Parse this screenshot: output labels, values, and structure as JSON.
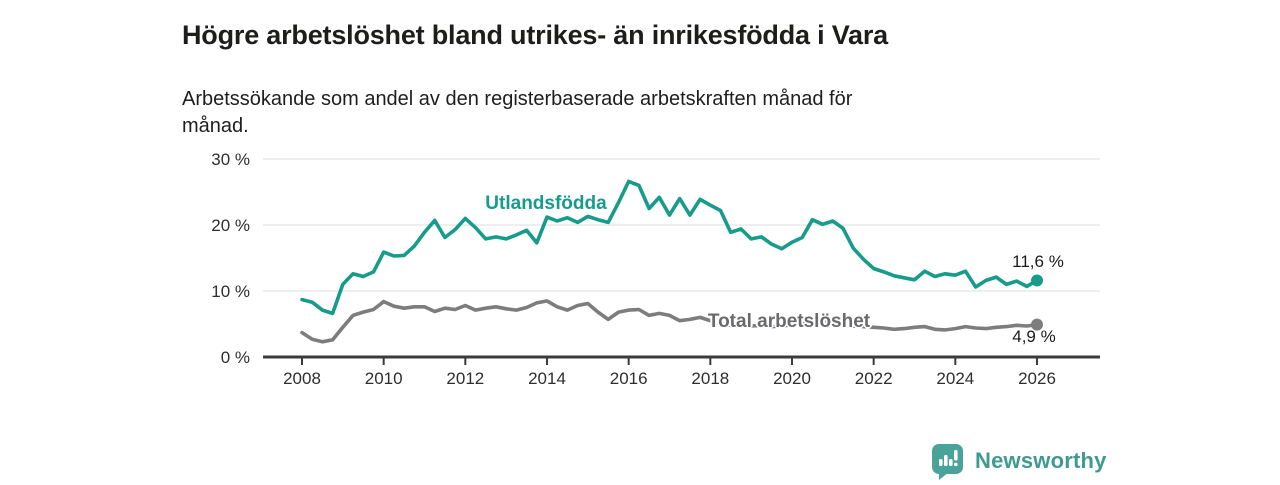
{
  "header": {
    "title": "Högre arbetslöshet bland utrikes- än inrikesfödda i Vara",
    "subtitle": "Arbetssökande som andel av den registerbaserade arbetskraften månad för\nmånad."
  },
  "chart_data": {
    "type": "line",
    "title": "Högre arbetslöshet bland utrikes- än inrikesfödda i Vara",
    "subtitle": "Arbetssökande som andel av den registerbaserade arbetskraften månad för månad.",
    "unit": "%",
    "grid": "horizontal",
    "legend_position": "inline-labels",
    "xlim": [
      2007.0,
      2026.6
    ],
    "ylim": [
      0,
      30
    ],
    "x_ticks": [
      2008,
      2010,
      2012,
      2014,
      2016,
      2018,
      2020,
      2022,
      2024,
      2026
    ],
    "x_tick_labels": [
      "2008",
      "2010",
      "2012",
      "2014",
      "2016",
      "2018",
      "2020",
      "2022",
      "2024",
      "2026"
    ],
    "y_ticks": [
      0,
      10,
      20,
      30
    ],
    "y_tick_labels": [
      "0 %",
      "10 %",
      "20 %",
      "30 %"
    ],
    "x": [
      2008.0,
      2008.25,
      2008.5,
      2008.75,
      2009.0,
      2009.25,
      2009.5,
      2009.75,
      2010.0,
      2010.25,
      2010.5,
      2010.75,
      2011.0,
      2011.25,
      2011.5,
      2011.75,
      2012.0,
      2012.25,
      2012.5,
      2012.75,
      2013.0,
      2013.25,
      2013.5,
      2013.75,
      2014.0,
      2014.25,
      2014.5,
      2014.75,
      2015.0,
      2015.25,
      2015.5,
      2015.75,
      2016.0,
      2016.25,
      2016.5,
      2016.75,
      2017.0,
      2017.25,
      2017.5,
      2017.75,
      2018.0,
      2018.25,
      2018.5,
      2018.75,
      2019.0,
      2019.25,
      2019.5,
      2019.75,
      2020.0,
      2020.25,
      2020.5,
      2020.75,
      2021.0,
      2021.25,
      2021.5,
      2021.75,
      2022.0,
      2022.25,
      2022.5,
      2022.75,
      2023.0,
      2023.25,
      2023.5,
      2023.75,
      2024.0,
      2024.25,
      2024.5,
      2024.75,
      2025.0,
      2025.25,
      2025.5,
      2025.75,
      2026.0
    ],
    "series": [
      {
        "name": "Utlandsfödda",
        "color": "#179b8b",
        "end_value": 11.6,
        "end_label": "11,6 %",
        "values": [
          8.7,
          8.3,
          7.1,
          6.6,
          11.0,
          12.6,
          12.2,
          12.9,
          15.9,
          15.3,
          15.4,
          16.8,
          18.9,
          20.7,
          18.1,
          19.3,
          21.0,
          19.6,
          17.9,
          18.2,
          17.9,
          18.5,
          19.2,
          17.3,
          21.2,
          20.6,
          21.1,
          20.4,
          21.3,
          20.8,
          20.4,
          23.4,
          26.6,
          26.0,
          22.5,
          24.2,
          21.5,
          24.0,
          21.5,
          23.9,
          23.0,
          22.2,
          18.9,
          19.4,
          17.9,
          18.2,
          17.1,
          16.4,
          17.4,
          18.1,
          20.8,
          20.1,
          20.6,
          19.5,
          16.5,
          14.8,
          13.4,
          12.9,
          12.3,
          12.0,
          11.7,
          13.0,
          12.2,
          12.6,
          12.4,
          13.0,
          10.6,
          11.6,
          12.1,
          11.0,
          11.5,
          10.7,
          11.6
        ]
      },
      {
        "name": "Total arbetslöshet",
        "color": "#7d7d7d",
        "end_value": 4.9,
        "end_label": "4,9 %",
        "values": [
          3.7,
          2.7,
          2.3,
          2.6,
          4.5,
          6.3,
          6.8,
          7.2,
          8.4,
          7.7,
          7.4,
          7.6,
          7.6,
          6.9,
          7.4,
          7.2,
          7.8,
          7.1,
          7.4,
          7.6,
          7.3,
          7.1,
          7.5,
          8.2,
          8.5,
          7.6,
          7.1,
          7.8,
          8.1,
          6.8,
          5.7,
          6.8,
          7.1,
          7.2,
          6.3,
          6.6,
          6.3,
          5.5,
          5.7,
          6.0,
          5.5,
          5.1,
          4.8,
          4.9,
          4.7,
          4.8,
          4.6,
          4.7,
          4.9,
          5.3,
          5.5,
          5.3,
          5.1,
          4.9,
          4.7,
          4.6,
          4.5,
          4.4,
          4.2,
          4.3,
          4.5,
          4.6,
          4.2,
          4.1,
          4.3,
          4.6,
          4.4,
          4.3,
          4.5,
          4.6,
          4.8,
          4.7,
          4.9
        ]
      }
    ]
  },
  "footer": {
    "brand": "Newsworthy"
  },
  "colors": {
    "accent_teal": "#179b8b",
    "series_gray": "#7d7d7d",
    "brand_teal": "#4aa39b",
    "grid": "#e3e3e3",
    "axis": "#3b3b3b",
    "text_dark": "#1d1d1b"
  }
}
